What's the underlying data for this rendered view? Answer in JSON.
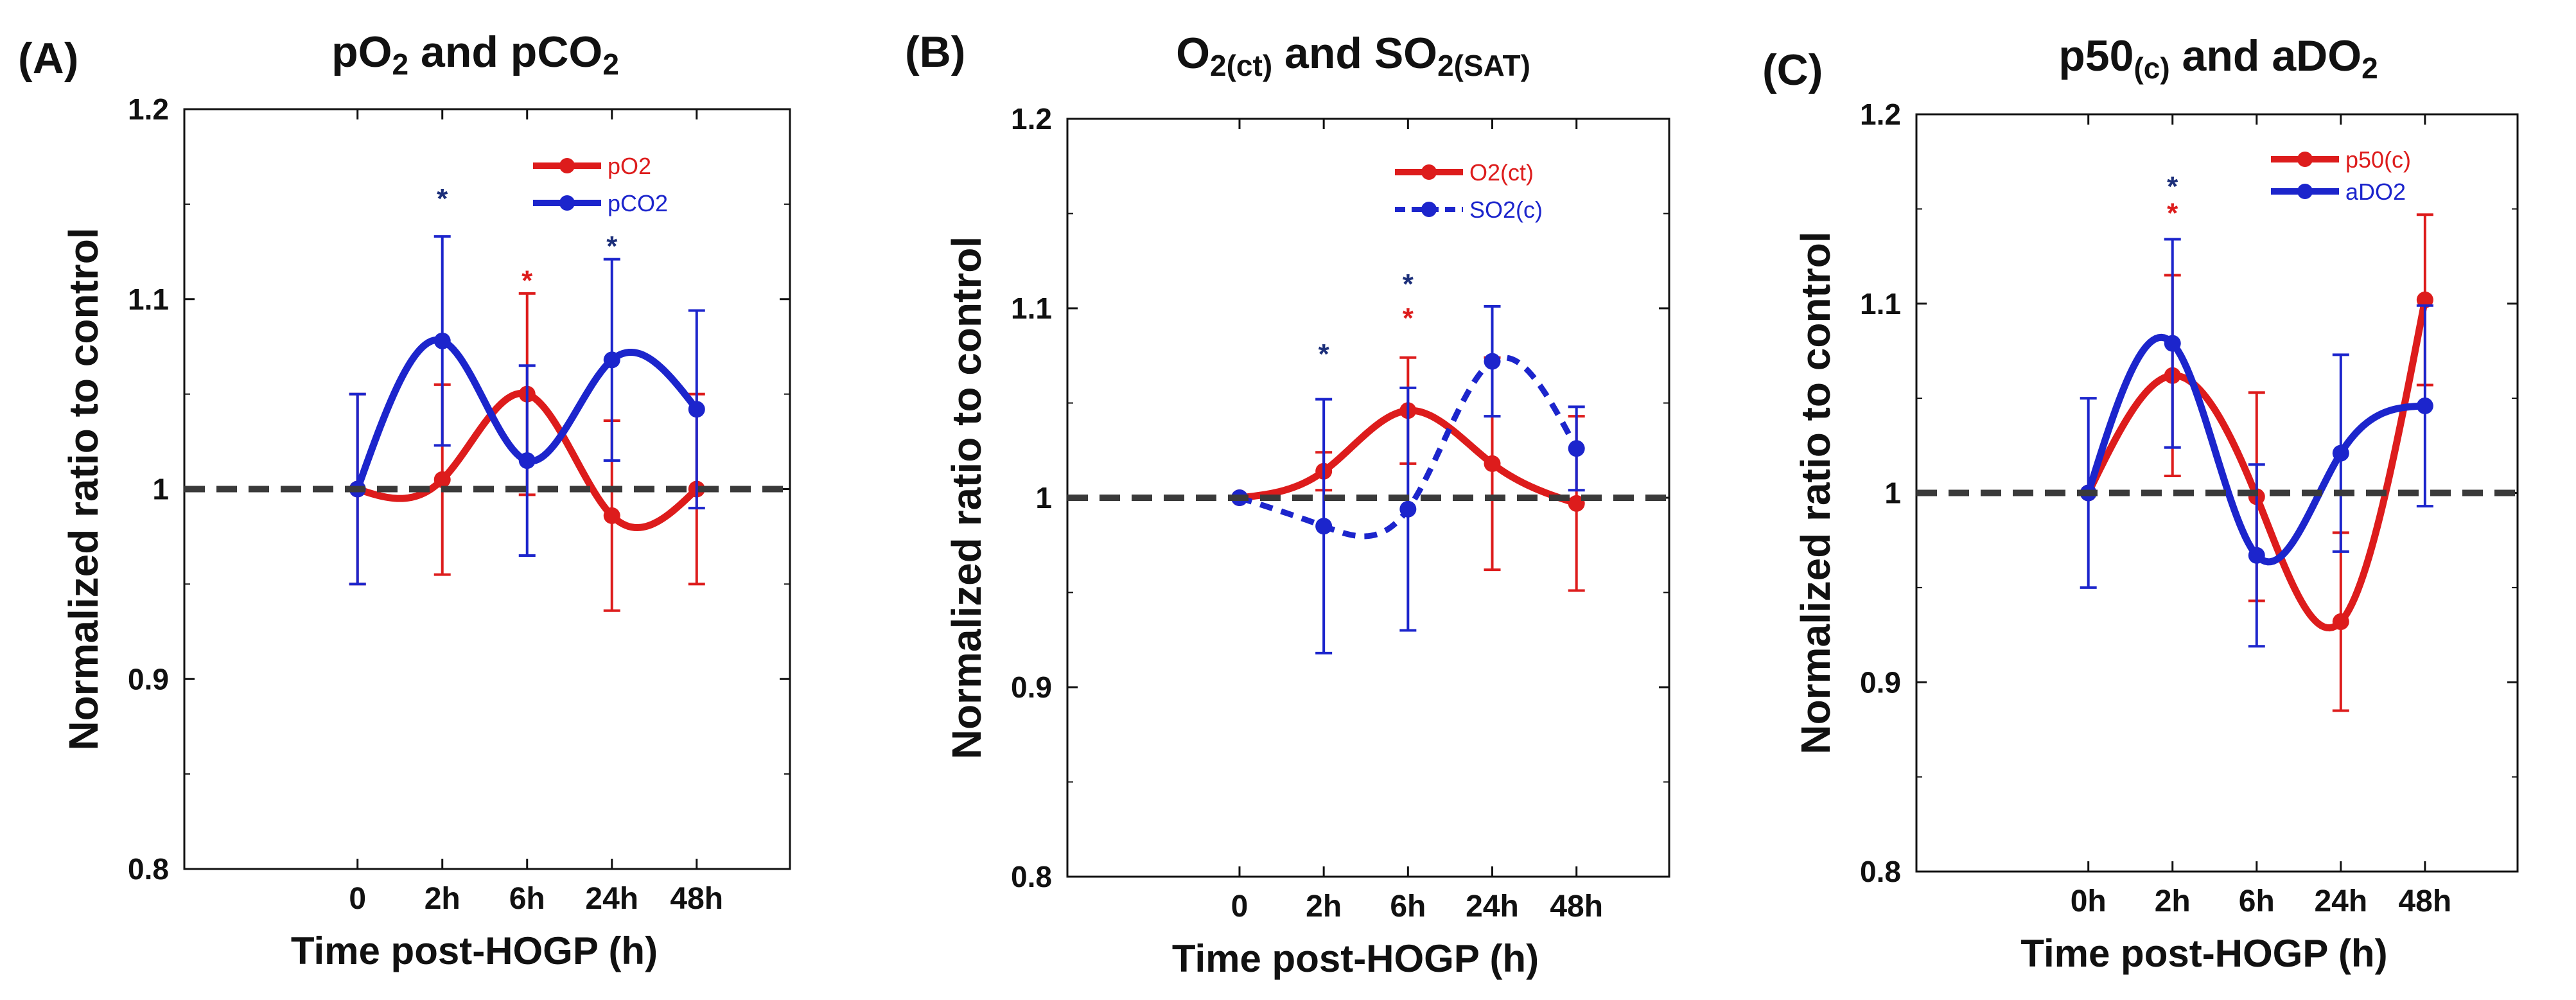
{
  "figure": {
    "reference_line_value": 1.0
  },
  "chart_data": [
    {
      "panel": "(A)",
      "type": "line",
      "title_main": "pO",
      "title_sub1": "2",
      "title_mid": " and pCO",
      "title_sub2": "2",
      "xlabel": "Time post-HOGP (h)",
      "ylabel": "Normalized ratio to control",
      "categories": [
        "0",
        "2h",
        "6h",
        "24h",
        "48h"
      ],
      "ylim": [
        0.8,
        1.2
      ],
      "yticks": [
        "0.8",
        "0.9",
        "1",
        "1.1",
        "1.2"
      ],
      "series": [
        {
          "name": "pO2",
          "color": "#dd1c1c",
          "dashed": false,
          "values": [
            1.0,
            1.005,
            1.05,
            0.986,
            1.0
          ],
          "err": [
            0.05,
            0.05,
            0.053,
            0.05,
            0.05
          ]
        },
        {
          "name": "pCO2",
          "color": "#1c25cc",
          "dashed": false,
          "values": [
            1.0,
            1.078,
            1.015,
            1.068,
            1.042
          ],
          "err": [
            0.05,
            0.055,
            0.05,
            0.053,
            0.052
          ]
        }
      ],
      "significance": [
        {
          "category": "2h",
          "color": "#1c2f7a",
          "label": "*",
          "y": 1.156
        },
        {
          "category": "6h",
          "color": "#dd1c1c",
          "label": "*",
          "y": 1.113
        },
        {
          "category": "24h",
          "color": "#1c2f7a",
          "label": "*",
          "y": 1.131
        }
      ]
    },
    {
      "panel": "(B)",
      "type": "line",
      "title_main": "O",
      "title_sub1": "2(ct)",
      "title_mid": " and SO",
      "title_sub2": "2(SAT)",
      "xlabel": "Time post-HOGP (h)",
      "ylabel": "Normalized ratio to control",
      "categories": [
        "0",
        "2h",
        "6h",
        "24h",
        "48h"
      ],
      "ylim": [
        0.8,
        1.2
      ],
      "yticks": [
        "0.8",
        "0.9",
        "1",
        "1.1",
        "1.2"
      ],
      "series": [
        {
          "name": "O2(ct)",
          "color": "#dd1c1c",
          "dashed": false,
          "values": [
            1.0,
            1.014,
            1.046,
            1.018,
            0.997
          ],
          "err": [
            0.0,
            0.01,
            0.028,
            0.056,
            0.046
          ]
        },
        {
          "name": "SO2(c)",
          "color": "#1c25cc",
          "dashed": true,
          "values": [
            1.0,
            0.985,
            0.994,
            1.072,
            1.026
          ],
          "err": [
            0.0,
            0.067,
            0.064,
            0.029,
            0.022
          ]
        }
      ],
      "significance": [
        {
          "category": "2h",
          "color": "#1c2f7a",
          "label": "*",
          "y": 1.079
        },
        {
          "category": "6h",
          "color": "#1c2f7a",
          "label": "*",
          "y": 1.116
        },
        {
          "category": "6h",
          "color": "#dd1c1c",
          "label": "*",
          "y": 1.098
        }
      ]
    },
    {
      "panel": "(C)",
      "type": "line",
      "title_main": "p50",
      "title_sub1": "(c)",
      "title_mid": " and aDO",
      "title_sub2": "2",
      "xlabel": "Time post-HOGP (h)",
      "ylabel": "Normalized ratio to control",
      "categories": [
        "0h",
        "2h",
        "6h",
        "24h",
        "48h"
      ],
      "ylim": [
        0.8,
        1.2
      ],
      "yticks": [
        "0.8",
        "0.9",
        "1",
        "1.1",
        "1.2"
      ],
      "series": [
        {
          "name": "p50(c)",
          "color": "#dd1c1c",
          "dashed": false,
          "values": [
            1.0,
            1.062,
            0.998,
            0.932,
            1.102
          ],
          "err": [
            0.0,
            0.053,
            0.055,
            0.047,
            0.045
          ]
        },
        {
          "name": "aDO2",
          "color": "#1c25cc",
          "dashed": false,
          "values": [
            1.0,
            1.079,
            0.967,
            1.021,
            1.046
          ],
          "err": [
            0.05,
            0.055,
            0.048,
            0.052,
            0.053
          ]
        }
      ],
      "significance": [
        {
          "category": "2h",
          "color": "#1c2f7a",
          "label": "*",
          "y": 1.165
        },
        {
          "category": "2h",
          "color": "#dd1c1c",
          "label": "*",
          "y": 1.151
        }
      ]
    }
  ]
}
